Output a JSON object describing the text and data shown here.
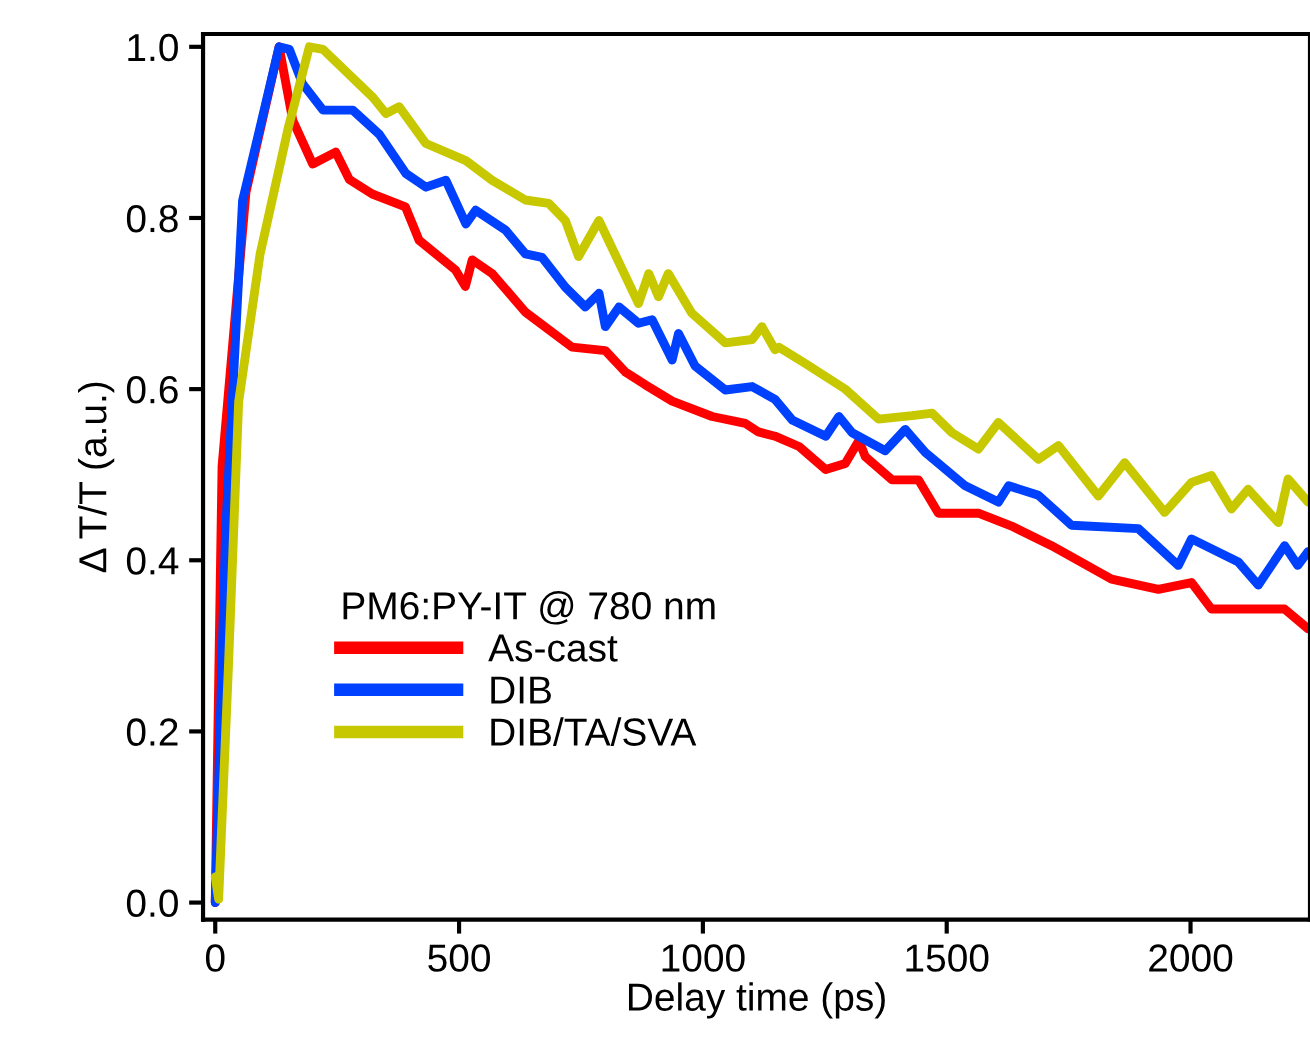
{
  "chart_data": {
    "type": "line",
    "xlabel": "Delay time (ps)",
    "ylabel": "Δ T/T (a.u.)",
    "legend_title": "PM6:PY-IT @ 780 nm",
    "xlim": [
      -25,
      2245
    ],
    "xticks": [
      0,
      500,
      1000,
      1500,
      2000
    ],
    "ylim": [
      -0.02,
      1.015
    ],
    "yticks": [
      {
        "value": 0,
        "label": "0.0"
      },
      {
        "value": 0.2,
        "label": "0.2"
      },
      {
        "value": 0.4,
        "label": "0.4"
      },
      {
        "value": 0.6,
        "label": "0.6"
      },
      {
        "value": 0.8,
        "label": "0.8"
      },
      {
        "value": 1.0,
        "label": "1.0"
      }
    ],
    "grid": false,
    "legend": "bottom left",
    "marker": "none",
    "line_style": "solid",
    "series": [
      {
        "name": "As-cast",
        "color": "#ff0000",
        "x": [
          0,
          14,
          63,
          131,
          159,
          200,
          247,
          275,
          322,
          390,
          418,
          493,
          513,
          527,
          568,
          636,
          732,
          800,
          841,
          882,
          937,
          1019,
          1087,
          1114,
          1148,
          1197,
          1252,
          1292,
          1320,
          1333,
          1388,
          1442,
          1483,
          1565,
          1633,
          1715,
          1838,
          1934,
          2002,
          2043,
          2125,
          2193,
          2241
        ],
        "values": [
          0.0,
          0.51,
          0.83,
          1.0,
          0.914,
          0.863,
          0.877,
          0.845,
          0.828,
          0.813,
          0.774,
          0.739,
          0.72,
          0.751,
          0.735,
          0.69,
          0.649,
          0.645,
          0.62,
          0.605,
          0.586,
          0.568,
          0.56,
          0.55,
          0.545,
          0.533,
          0.506,
          0.513,
          0.54,
          0.521,
          0.494,
          0.494,
          0.455,
          0.455,
          0.44,
          0.417,
          0.378,
          0.366,
          0.374,
          0.343,
          0.343,
          0.343,
          0.32
        ]
      },
      {
        "name": "DIB",
        "color": "#0040ff",
        "x": [
          0,
          21,
          56,
          92,
          131,
          152,
          179,
          221,
          282,
          336,
          391,
          432,
          473,
          514,
          534,
          595,
          636,
          670,
          718,
          759,
          787,
          800,
          828,
          868,
          896,
          937,
          950,
          984,
          1046,
          1101,
          1148,
          1183,
          1252,
          1279,
          1306,
          1374,
          1415,
          1456,
          1538,
          1606,
          1627,
          1688,
          1756,
          1893,
          1975,
          2002,
          2098,
          2139,
          2193,
          2220,
          2241
        ],
        "values": [
          0.0,
          0.43,
          0.82,
          0.906,
          1.0,
          0.997,
          0.957,
          0.926,
          0.926,
          0.898,
          0.852,
          0.836,
          0.844,
          0.793,
          0.809,
          0.786,
          0.758,
          0.754,
          0.719,
          0.696,
          0.712,
          0.673,
          0.696,
          0.677,
          0.681,
          0.634,
          0.665,
          0.627,
          0.599,
          0.603,
          0.588,
          0.564,
          0.545,
          0.568,
          0.549,
          0.528,
          0.553,
          0.526,
          0.487,
          0.468,
          0.487,
          0.476,
          0.441,
          0.437,
          0.394,
          0.425,
          0.398,
          0.371,
          0.417,
          0.394,
          0.41
        ]
      },
      {
        "name": "DIB/TA/SVA",
        "color": "#c8c800",
        "x": [
          0,
          7,
          27,
          48,
          92,
          150,
          193,
          221,
          323,
          350,
          377,
          432,
          514,
          568,
          636,
          684,
          718,
          745,
          787,
          868,
          889,
          909,
          929,
          977,
          1046,
          1101,
          1121,
          1148,
          1156,
          1210,
          1292,
          1360,
          1429,
          1470,
          1511,
          1565,
          1606,
          1688,
          1729,
          1811,
          1865,
          1947,
          2002,
          2043,
          2084,
          2118,
          2180,
          2200,
          2241
        ],
        "values": [
          0.03,
          0.004,
          0.275,
          0.585,
          0.758,
          0.906,
          1.0,
          0.997,
          0.941,
          0.922,
          0.93,
          0.887,
          0.867,
          0.844,
          0.821,
          0.817,
          0.797,
          0.755,
          0.797,
          0.7,
          0.735,
          0.708,
          0.735,
          0.689,
          0.654,
          0.658,
          0.673,
          0.646,
          0.649,
          0.63,
          0.6,
          0.565,
          0.569,
          0.572,
          0.549,
          0.53,
          0.561,
          0.518,
          0.534,
          0.475,
          0.514,
          0.456,
          0.491,
          0.499,
          0.46,
          0.483,
          0.444,
          0.495,
          0.468
        ]
      }
    ]
  }
}
